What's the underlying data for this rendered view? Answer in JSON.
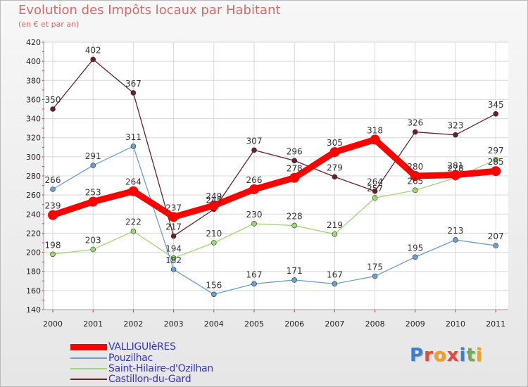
{
  "header": {
    "title": "Evolution des Impôts locaux par Habitant",
    "subtitle": "(en € et par an)"
  },
  "logo": {
    "text": "Proxiti"
  },
  "chart_data": {
    "type": "line",
    "title": "Evolution des Impôts locaux par Habitant",
    "subtitle": "(en € et par an)",
    "xlabel": "",
    "ylabel": "",
    "x": [
      "2000",
      "2001",
      "2002",
      "2003",
      "2004",
      "2005",
      "2006",
      "2007",
      "2008",
      "2009",
      "2010",
      "2011"
    ],
    "ylim": [
      140,
      420
    ],
    "yticks": [
      140,
      160,
      180,
      200,
      220,
      240,
      260,
      280,
      300,
      320,
      340,
      360,
      380,
      400,
      420
    ],
    "grid": true,
    "legend_position": "bottom-left",
    "series": [
      {
        "name": "Castillon-du-Gard",
        "color": "#6b1f24",
        "values": [
          350,
          402,
          367,
          217,
          245,
          307,
          296,
          279,
          264,
          326,
          323,
          345
        ]
      },
      {
        "name": "Saint-Hilaire-d'Ozilhan",
        "color": "#9ed86f",
        "values": [
          198,
          203,
          222,
          194,
          210,
          230,
          228,
          219,
          257,
          265,
          278,
          297
        ]
      },
      {
        "name": "Pouzilhac",
        "color": "#6a9fd0",
        "values": [
          266,
          291,
          311,
          182,
          156,
          167,
          171,
          167,
          175,
          195,
          213,
          207
        ]
      },
      {
        "name": "VALLIGUIèRES",
        "color": "#ff0000",
        "values": [
          239,
          253,
          264,
          237,
          249,
          266,
          278,
          305,
          318,
          280,
          281,
          285
        ]
      }
    ],
    "point_labels": {
      "Castillon-du-Gard": [
        "350",
        "402",
        "367",
        "217",
        "245",
        "307",
        "296",
        "279",
        "264",
        "326",
        "323",
        "345"
      ],
      "Saint-Hilaire-d'Ozilhan": [
        "198",
        "203",
        "222",
        "194",
        "210",
        "230",
        "228",
        "219",
        "257",
        "265",
        "278",
        "297"
      ],
      "Pouzilhac": [
        "266",
        "291",
        "311",
        "182",
        "156",
        "167",
        "171",
        "167",
        "175",
        "195",
        "213",
        "207"
      ],
      "VALLIGUIèRES": [
        "239",
        "253",
        "264",
        "237",
        "249",
        "266",
        "278",
        "305",
        "318",
        "280",
        "281",
        "285"
      ]
    }
  },
  "legend": {
    "items": [
      {
        "label": "VALLIGUIèRES",
        "color": "#ff0000"
      },
      {
        "label": "Pouzilhac",
        "color": "#6a9fd0"
      },
      {
        "label": "Saint-Hilaire-d'Ozilhan",
        "color": "#9ed86f"
      },
      {
        "label": "Castillon-du-Gard",
        "color": "#6b1f24"
      }
    ]
  }
}
